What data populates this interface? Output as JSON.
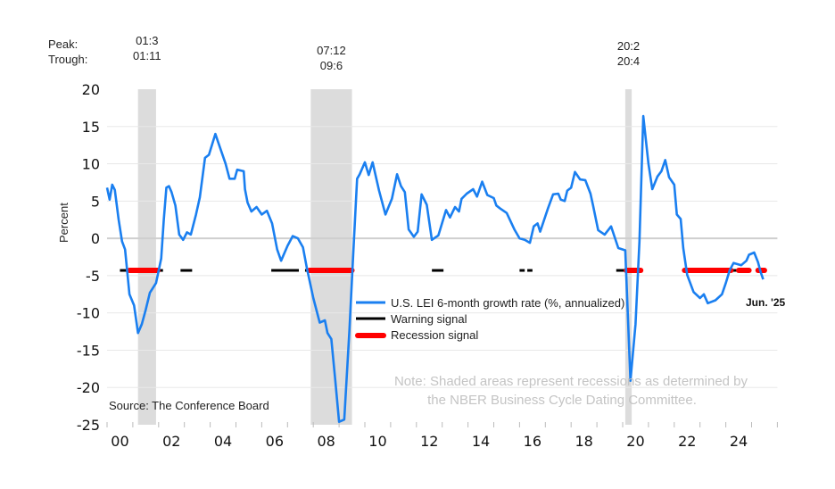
{
  "chart_data": {
    "type": "line",
    "ylabel": "Percent",
    "ylim": [
      -25,
      20
    ],
    "yticks": [
      20,
      15,
      10,
      5,
      0,
      -5,
      -10,
      -15,
      -20,
      -25
    ],
    "xlim": [
      2000,
      2026
    ],
    "xtick_labels": [
      {
        "year": 2000,
        "label": "00"
      },
      {
        "year": 2002,
        "label": "02"
      },
      {
        "year": 2004,
        "label": "04"
      },
      {
        "year": 2006,
        "label": "06"
      },
      {
        "year": 2008,
        "label": "08"
      },
      {
        "year": 2010,
        "label": "10"
      },
      {
        "year": 2012,
        "label": "12"
      },
      {
        "year": 2014,
        "label": "14"
      },
      {
        "year": 2016,
        "label": "16"
      },
      {
        "year": 2018,
        "label": "18"
      },
      {
        "year": 2020,
        "label": "20"
      },
      {
        "year": 2022,
        "label": "22"
      },
      {
        "year": 2024,
        "label": "24"
      }
    ],
    "grid": true,
    "peak_label": "Peak:",
    "trough_label": "Trough:",
    "recessions": [
      {
        "start": 2001.2,
        "end": 2001.9,
        "peak": "01:3",
        "trough": "01:11"
      },
      {
        "start": 2007.9,
        "end": 2009.5,
        "peak": "07:12",
        "trough": "09:6"
      },
      {
        "start": 2020.1,
        "end": 2020.35,
        "peak": "20:2",
        "trough": "20:4"
      }
    ],
    "signal_level": -4.3,
    "series": [
      {
        "name": "U.S. LEI 6-month growth rate (%, annualized)",
        "color": "#1a7ff0",
        "points": [
          [
            2000.0,
            6.8
          ],
          [
            2000.1,
            5.2
          ],
          [
            2000.2,
            7.2
          ],
          [
            2000.3,
            6.5
          ],
          [
            2000.45,
            2.5
          ],
          [
            2000.58,
            -0.4
          ],
          [
            2000.7,
            -1.5
          ],
          [
            2000.87,
            -7.5
          ],
          [
            2001.05,
            -9
          ],
          [
            2001.2,
            -12.7
          ],
          [
            2001.35,
            -11.5
          ],
          [
            2001.5,
            -9.6
          ],
          [
            2001.66,
            -7.3
          ],
          [
            2001.9,
            -6
          ],
          [
            2002.1,
            -2.7
          ],
          [
            2002.2,
            2.5
          ],
          [
            2002.3,
            6.8
          ],
          [
            2002.4,
            7.0
          ],
          [
            2002.5,
            6.2
          ],
          [
            2002.65,
            4.4
          ],
          [
            2002.8,
            0.5
          ],
          [
            2002.95,
            -0.2
          ],
          [
            2003.1,
            0.8
          ],
          [
            2003.25,
            0.5
          ],
          [
            2003.45,
            3.2
          ],
          [
            2003.6,
            5.5
          ],
          [
            2003.8,
            10.8
          ],
          [
            2003.95,
            11.2
          ],
          [
            2004.2,
            14
          ],
          [
            2004.35,
            12.5
          ],
          [
            2004.6,
            10
          ],
          [
            2004.75,
            8
          ],
          [
            2004.95,
            8
          ],
          [
            2005.05,
            9.2
          ],
          [
            2005.3,
            9
          ],
          [
            2005.35,
            6.6
          ],
          [
            2005.45,
            4.8
          ],
          [
            2005.6,
            3.6
          ],
          [
            2005.8,
            4.2
          ],
          [
            2006.0,
            3.2
          ],
          [
            2006.2,
            3.7
          ],
          [
            2006.4,
            2
          ],
          [
            2006.6,
            -1.5
          ],
          [
            2006.75,
            -3
          ],
          [
            2007.0,
            -1
          ],
          [
            2007.2,
            0.3
          ],
          [
            2007.4,
            0
          ],
          [
            2007.6,
            -1.2
          ],
          [
            2007.75,
            -4
          ],
          [
            2008.0,
            -8
          ],
          [
            2008.25,
            -11.3
          ],
          [
            2008.45,
            -11
          ],
          [
            2008.55,
            -12.7
          ],
          [
            2008.7,
            -13.5
          ],
          [
            2008.85,
            -19
          ],
          [
            2009.0,
            -24.6
          ],
          [
            2009.2,
            -24.3
          ],
          [
            2009.4,
            -12.3
          ],
          [
            2009.55,
            -2
          ],
          [
            2009.7,
            8
          ],
          [
            2009.8,
            8.6
          ],
          [
            2010.0,
            10.2
          ],
          [
            2010.15,
            8.5
          ],
          [
            2010.3,
            10.2
          ],
          [
            2010.55,
            6.4
          ],
          [
            2010.8,
            3.2
          ],
          [
            2011.05,
            5.3
          ],
          [
            2011.25,
            8.6
          ],
          [
            2011.4,
            7
          ],
          [
            2011.55,
            6.2
          ],
          [
            2011.7,
            1.2
          ],
          [
            2011.9,
            0.2
          ],
          [
            2012.05,
            0.9
          ],
          [
            2012.2,
            5.9
          ],
          [
            2012.4,
            4.5
          ],
          [
            2012.6,
            -0.2
          ],
          [
            2012.85,
            0.4
          ],
          [
            2013.15,
            3.8
          ],
          [
            2013.3,
            2.8
          ],
          [
            2013.5,
            4.2
          ],
          [
            2013.65,
            3.6
          ],
          [
            2013.75,
            5.3
          ],
          [
            2013.95,
            6
          ],
          [
            2014.2,
            6.6
          ],
          [
            2014.35,
            5.6
          ],
          [
            2014.55,
            7.6
          ],
          [
            2014.75,
            5.8
          ],
          [
            2015.0,
            5.4
          ],
          [
            2015.1,
            4.4
          ],
          [
            2015.25,
            4
          ],
          [
            2015.5,
            3.4
          ],
          [
            2015.8,
            1.2
          ],
          [
            2016.0,
            0
          ],
          [
            2016.2,
            -0.2
          ],
          [
            2016.4,
            -0.6
          ],
          [
            2016.55,
            1.6
          ],
          [
            2016.7,
            2
          ],
          [
            2016.8,
            0.9
          ],
          [
            2017.1,
            4
          ],
          [
            2017.3,
            5.9
          ],
          [
            2017.5,
            6
          ],
          [
            2017.6,
            5.2
          ],
          [
            2017.75,
            5
          ],
          [
            2017.85,
            6.4
          ],
          [
            2018.0,
            6.8
          ],
          [
            2018.15,
            8.9
          ],
          [
            2018.35,
            7.9
          ],
          [
            2018.55,
            7.8
          ],
          [
            2018.75,
            6
          ],
          [
            2018.85,
            4.4
          ],
          [
            2019.05,
            1.1
          ],
          [
            2019.3,
            0.5
          ],
          [
            2019.55,
            1.6
          ],
          [
            2019.83,
            -1.3
          ],
          [
            2020.1,
            -1.6
          ],
          [
            2020.3,
            -19.1
          ],
          [
            2020.5,
            -11.5
          ],
          [
            2020.65,
            -0.4
          ],
          [
            2020.8,
            16.4
          ],
          [
            2021.0,
            10
          ],
          [
            2021.15,
            6.6
          ],
          [
            2021.35,
            8.3
          ],
          [
            2021.5,
            9
          ],
          [
            2021.65,
            10.5
          ],
          [
            2021.8,
            8.2
          ],
          [
            2022.0,
            7.2
          ],
          [
            2022.1,
            3.2
          ],
          [
            2022.25,
            2.6
          ],
          [
            2022.35,
            -1.3
          ],
          [
            2022.5,
            -4.9
          ],
          [
            2022.75,
            -7.2
          ],
          [
            2023.0,
            -8
          ],
          [
            2023.15,
            -7.5
          ],
          [
            2023.3,
            -8.7
          ],
          [
            2023.6,
            -8.3
          ],
          [
            2023.85,
            -7.5
          ],
          [
            2024.0,
            -6
          ],
          [
            2024.15,
            -4.3
          ],
          [
            2024.3,
            -3.3
          ],
          [
            2024.6,
            -3.6
          ],
          [
            2024.8,
            -3
          ],
          [
            2024.9,
            -2.2
          ],
          [
            2025.1,
            -1.9
          ],
          [
            2025.25,
            -3.2
          ],
          [
            2025.35,
            -4.5
          ],
          [
            2025.45,
            -5.5
          ]
        ]
      },
      {
        "name": "Warning signal",
        "color": "#000000",
        "segments": [
          [
            2000.5,
            2000.87
          ],
          [
            2001.97,
            2002.17
          ],
          [
            2002.85,
            2003.3
          ],
          [
            2006.37,
            2007.44
          ],
          [
            2007.68,
            2007.85
          ],
          [
            2012.6,
            2013.05
          ],
          [
            2016.0,
            2016.2
          ],
          [
            2016.3,
            2016.5
          ],
          [
            2019.75,
            2020.07
          ],
          [
            2024.2,
            2024.5
          ]
        ]
      },
      {
        "name": "Recession signal",
        "color": "#ff0000",
        "segments": [
          [
            2000.87,
            2001.97
          ],
          [
            2007.85,
            2009.5
          ],
          [
            2020.14,
            2020.7
          ],
          [
            2022.4,
            2024.2
          ],
          [
            2024.5,
            2024.9
          ],
          [
            2025.25,
            2025.5
          ]
        ]
      }
    ],
    "end_label": "Jun. '25",
    "source": "Source: The Conference Board",
    "note_line1": "Note: Shaded areas represent recessions as determined by",
    "note_line2": "the NBER Business Cycle Dating Committee."
  }
}
